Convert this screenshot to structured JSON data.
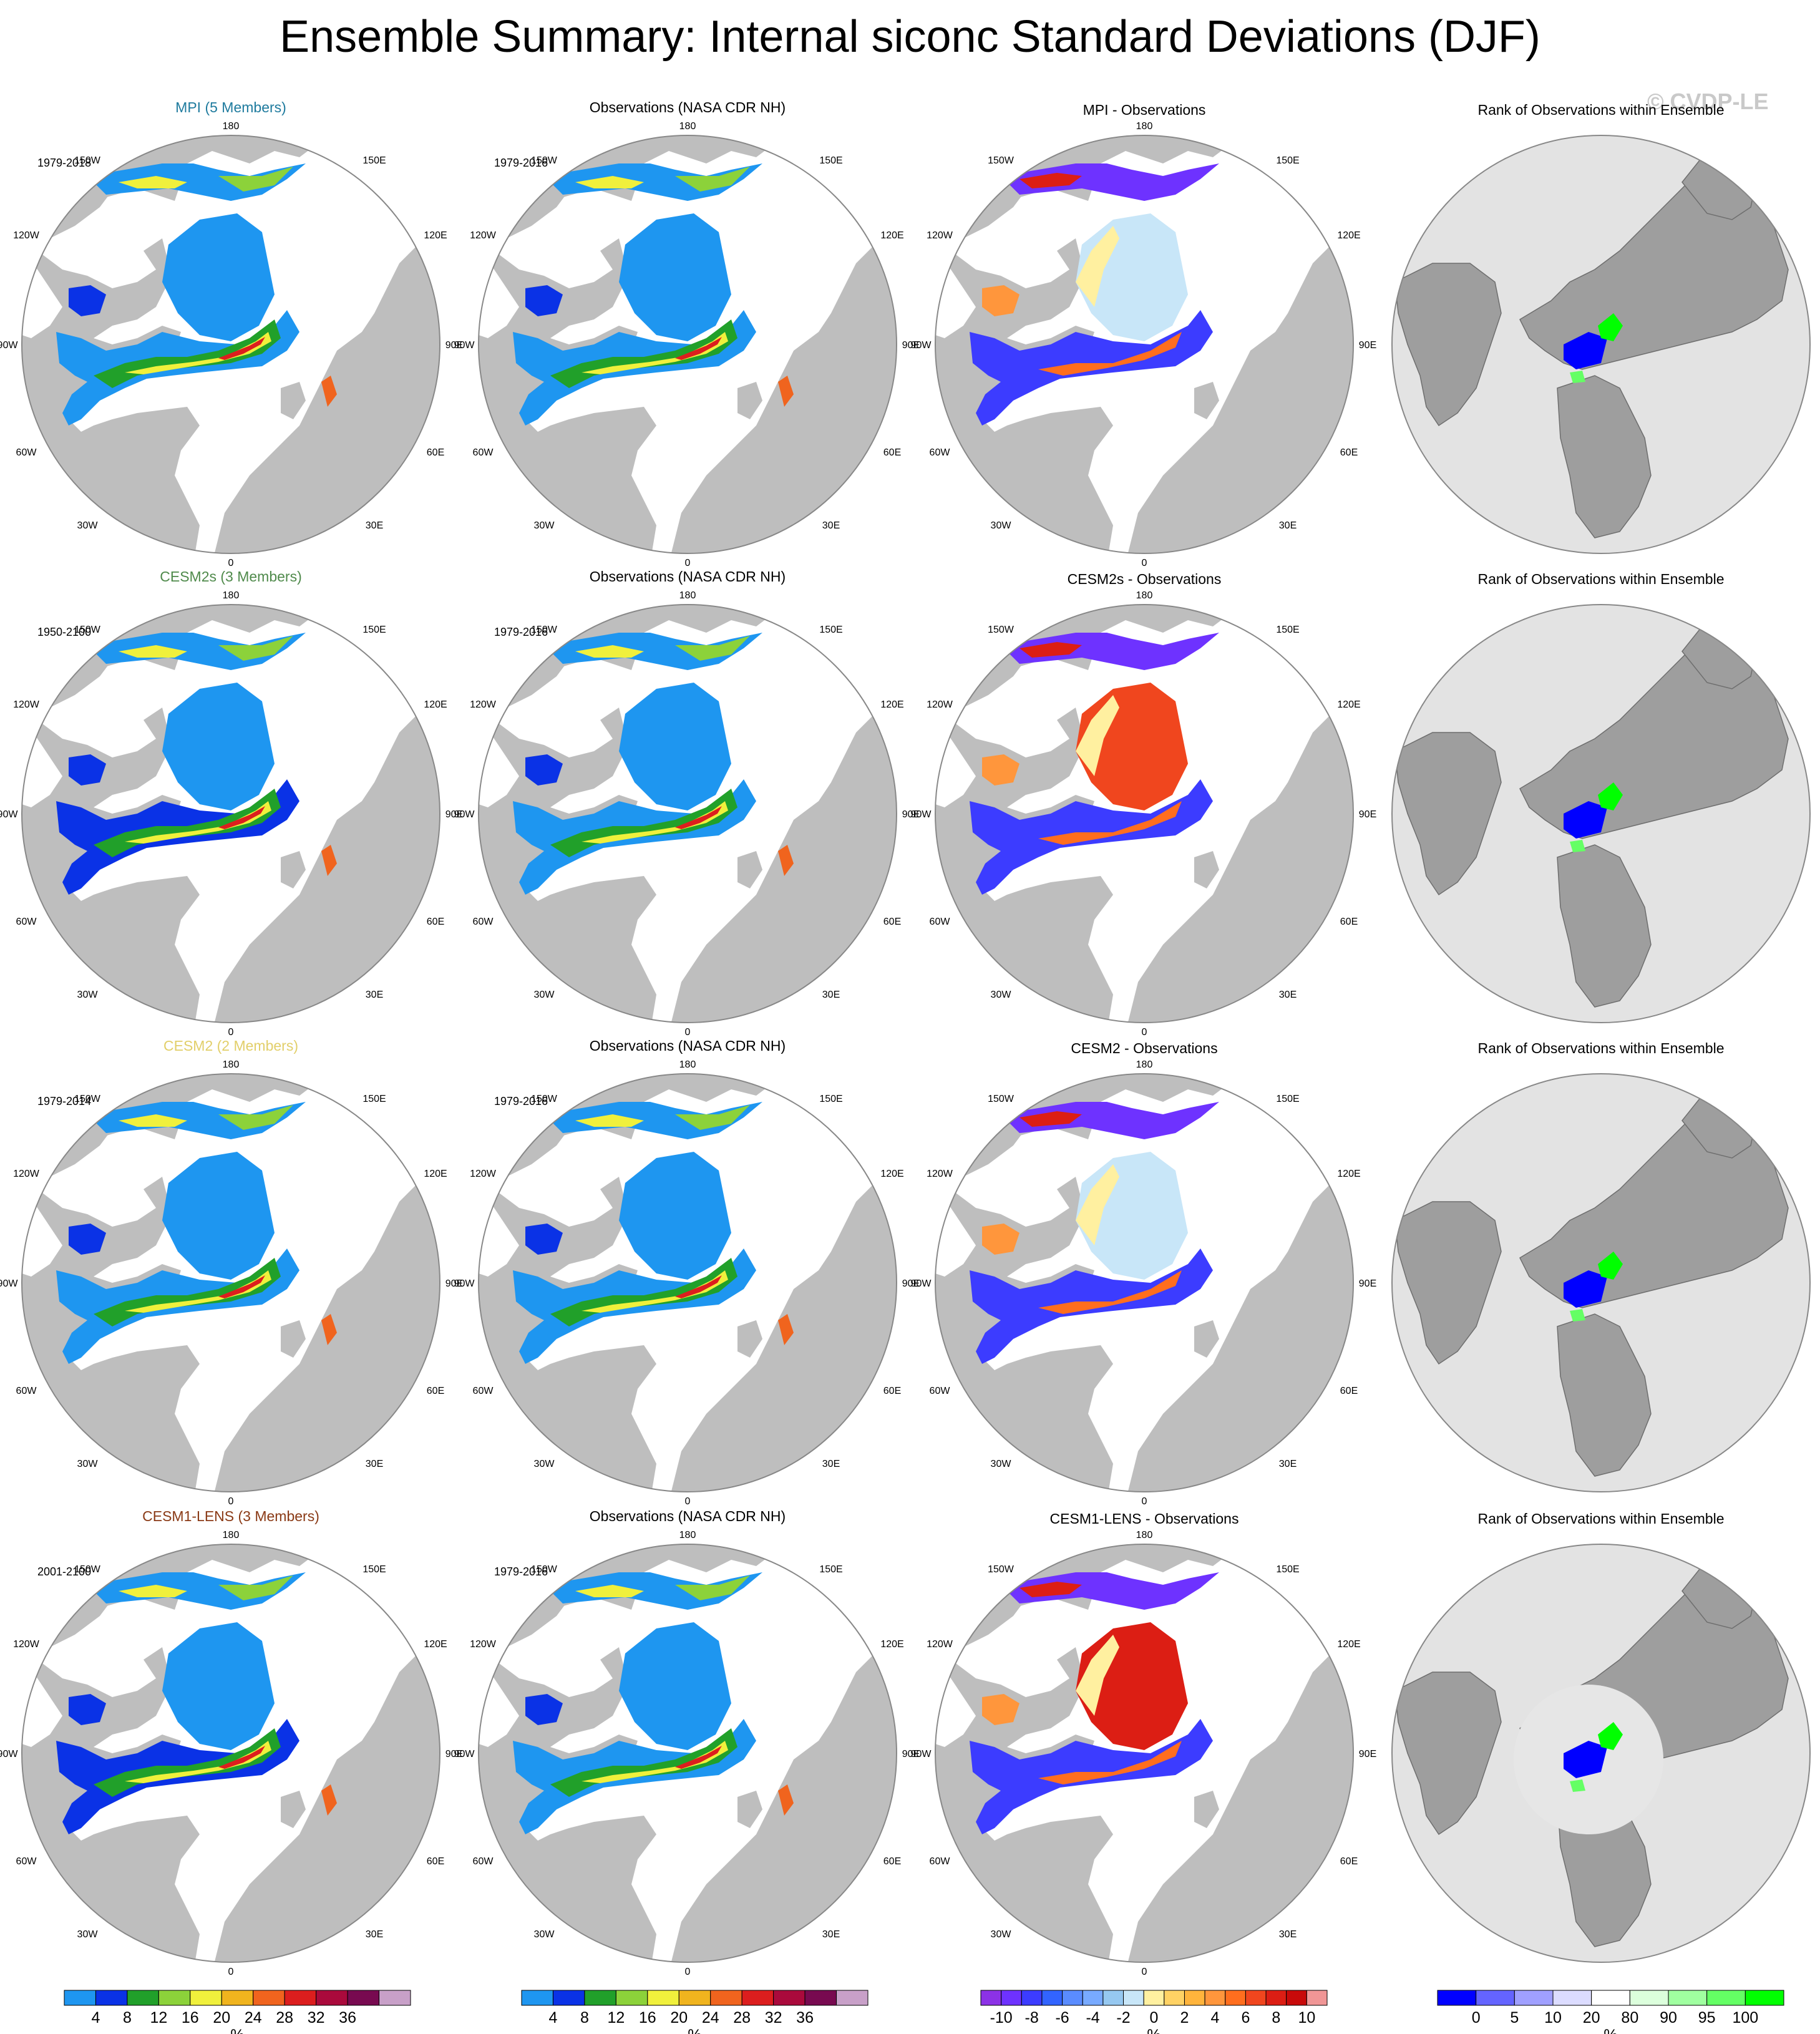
{
  "title": "Ensemble Summary: Internal siconc Standard Deviations (DJF)",
  "watermark": "© CVDP-LE",
  "lon_labels": {
    "top": "180",
    "bottom": "0",
    "l1": "150W",
    "r1": "150E",
    "l2": "120W",
    "r2": "120E",
    "l3": "90W",
    "r3": "90E",
    "l4": "60W",
    "r4": "60E",
    "l5": "30W",
    "r5": "30E"
  },
  "colors": {
    "land": "#bebebe",
    "ocean": "#ffffff",
    "rank_bg": "#e3e3e3",
    "model_titles": [
      "#1f7b9e",
      "#4f8a4b",
      "#e2cf6a",
      "#8a3a16"
    ]
  },
  "rows": [
    {
      "model": "MPI (5 Members)",
      "model_period": "1979-2018",
      "obs_title": "Observations (NASA CDR NH)",
      "obs_period": "1979-2016",
      "diff_title": "MPI - Observations",
      "rank_title": "Rank of Observations within Ensemble"
    },
    {
      "model": "CESM2s (3 Members)",
      "model_period": "1950-2100",
      "obs_title": "Observations (NASA CDR NH)",
      "obs_period": "1979-2016",
      "diff_title": "CESM2s - Observations",
      "rank_title": "Rank of Observations within Ensemble"
    },
    {
      "model": "CESM2 (2 Members)",
      "model_period": "1979-2014",
      "obs_title": "Observations (NASA CDR NH)",
      "obs_period": "1979-2016",
      "diff_title": "CESM2 - Observations",
      "rank_title": "Rank of Observations within Ensemble"
    },
    {
      "model": "CESM1-LENS (3 Members)",
      "model_period": "2001-2100",
      "obs_title": "Observations (NASA CDR NH)",
      "obs_period": "1979-2016",
      "diff_title": "CESM1-LENS - Observations",
      "rank_title": "Rank of Observations within Ensemble"
    }
  ],
  "colorbars": {
    "std": {
      "unit": "%",
      "labels": [
        "4",
        "8",
        "12",
        "16",
        "20",
        "24",
        "28",
        "32",
        "36"
      ],
      "colors": [
        "#1e96f0",
        "#0a32e6",
        "#21a02a",
        "#8cd23a",
        "#f0f03c",
        "#f0b41e",
        "#f0641e",
        "#dc1e1e",
        "#aa0a3c",
        "#780a50",
        "#c8a0c8"
      ]
    },
    "diff": {
      "unit": "%",
      "labels": [
        "-10",
        "-8",
        "-6",
        "-4",
        "-2",
        "0",
        "2",
        "4",
        "6",
        "8",
        "10"
      ],
      "colors": [
        "#8c32e6",
        "#6e32ff",
        "#3c3cff",
        "#3264ff",
        "#5a8cff",
        "#78aaff",
        "#96c8f0",
        "#c8e6f8",
        "#fff0a0",
        "#ffd264",
        "#ffb43c",
        "#ff963c",
        "#ff6e1e",
        "#f0461e",
        "#dc1e14",
        "#c80a0a",
        "#f09696"
      ]
    },
    "rank": {
      "unit": "%",
      "labels": [
        "0",
        "5",
        "10",
        "20",
        "80",
        "90",
        "95",
        "100"
      ],
      "colors": [
        "#0000ff",
        "#6464ff",
        "#a0a0ff",
        "#dcdcff",
        "#ffffff",
        "#dcffdc",
        "#a0ffa0",
        "#64ff64",
        "#00ff00"
      ]
    }
  }
}
